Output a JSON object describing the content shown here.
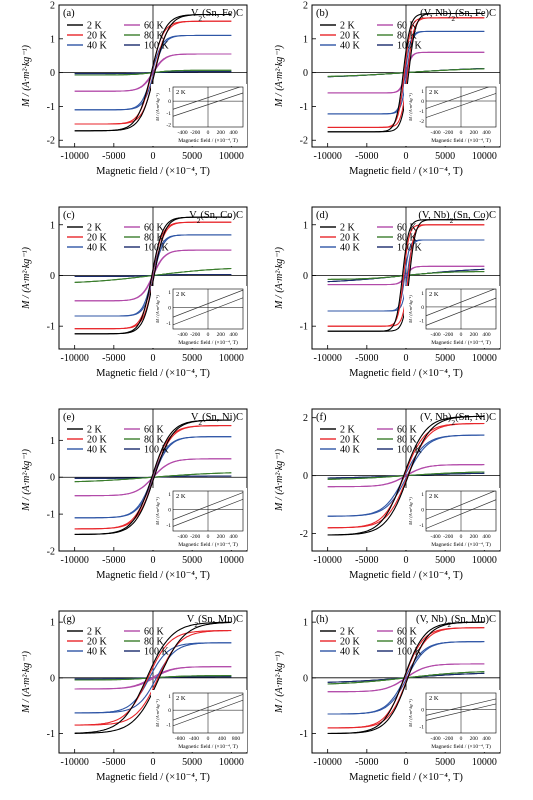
{
  "chart_data": [
    {
      "type": "line",
      "label": "(a)",
      "title": "V2(Sn, Fe)C",
      "title_parts": {
        "pre": "V",
        "sub": "2",
        "post": "(Sn, Fe)C"
      },
      "xlabel": "Magnetic field / (×10⁻⁴, T)",
      "ylabel": "M / (A·m²·kg⁻¹)",
      "xlim": [
        -12000,
        12000
      ],
      "ylim": [
        -2.2,
        2.0
      ],
      "xticks": [
        -10000,
        -5000,
        0,
        5000,
        10000
      ],
      "yticks": [
        -2,
        -1,
        0,
        1,
        2
      ],
      "series": [
        {
          "name": "2 K",
          "color": "#000000",
          "ms": 1.72,
          "hw": 1800,
          "hc": 220
        },
        {
          "name": "20 K",
          "color": "#e8262b",
          "ms": 1.52,
          "hw": 1500,
          "hc": 180
        },
        {
          "name": "40 K",
          "color": "#2f56a6",
          "ms": 1.1,
          "hw": 1300,
          "hc": 120
        },
        {
          "name": "60 K",
          "color": "#b24aa9",
          "ms": 0.55,
          "hw": 1500,
          "hc": 60
        },
        {
          "name": "80 K",
          "color": "#3a7d2c",
          "ms": 0.07,
          "hw": 2500,
          "hc": 0
        },
        {
          "name": "100 K",
          "color": "#1a2a6b",
          "ms": 0.03,
          "hw": 3000,
          "hc": 0
        }
      ],
      "inset": {
        "label": "2 K",
        "ylabel": "M / (A·m²·kg⁻¹)",
        "xlabel": "Magnetic field / (×10⁻⁴, T)",
        "xlim": [
          -550,
          550
        ],
        "ylim": [
          -2.2,
          1.2
        ],
        "xticks": [
          -400,
          -200,
          0,
          200,
          400
        ],
        "yticks": [
          -2,
          -1,
          0,
          1
        ],
        "curves": [
          {
            "slope": 0.0018,
            "offset": 0.3
          },
          {
            "slope": 0.0018,
            "offset": -0.3
          }
        ]
      }
    },
    {
      "type": "line",
      "label": "(b)",
      "title": "(V, Nb)2(Sn, Fe)C",
      "title_parts": {
        "pre": "(V, Nb)",
        "sub": "2",
        "post": "(Sn, Fe)C"
      },
      "xlabel": "Magnetic field / (×10⁻⁴, T)",
      "ylabel": "M / (A·m²·kg⁻¹)",
      "xlim": [
        -12000,
        12000
      ],
      "ylim": [
        -2.2,
        2.0
      ],
      "xticks": [
        -10000,
        -5000,
        0,
        5000,
        10000
      ],
      "yticks": [
        -2,
        -1,
        0,
        1,
        2
      ],
      "series": [
        {
          "name": "2 K",
          "color": "#000000",
          "ms": 1.75,
          "hw": 900,
          "hc": 350
        },
        {
          "name": "20 K",
          "color": "#e8262b",
          "ms": 1.62,
          "hw": 800,
          "hc": 200
        },
        {
          "name": "40 K",
          "color": "#2f56a6",
          "ms": 1.22,
          "hw": 700,
          "hc": 100
        },
        {
          "name": "60 K",
          "color": "#b24aa9",
          "ms": 0.6,
          "hw": 700,
          "hc": 50
        },
        {
          "name": "80 K",
          "color": "#3a7d2c",
          "ms": 0.14,
          "hw": 9000,
          "hc": 0
        },
        {
          "name": "100 K",
          "color": "#1a2a6b",
          "ms": 0.16,
          "hw": 10000,
          "hc": 0
        }
      ],
      "inset": {
        "label": "2 K",
        "ylabel": "M / (A·m²·kg⁻¹)",
        "xlabel": "Magnetic field / (×10⁻⁴, T)",
        "xlim": [
          -550,
          550
        ],
        "ylim": [
          -2.6,
          1.4
        ],
        "xticks": [
          -400,
          -200,
          0,
          200,
          400
        ],
        "yticks": [
          -2,
          -1,
          0,
          1
        ],
        "curves": [
          {
            "slope": 0.0022,
            "offset": 0.45
          },
          {
            "slope": 0.0022,
            "offset": -0.45
          }
        ]
      }
    },
    {
      "type": "line",
      "label": "(c)",
      "title": "V2(Sn, Co)C",
      "title_parts": {
        "pre": "V",
        "sub": "2",
        "post": "(Sn, Co)C"
      },
      "xlabel": "Magnetic field / (×10⁻⁴, T)",
      "ylabel": "M / (A·m²·kg⁻¹)",
      "xlim": [
        -12000,
        12000
      ],
      "ylim": [
        -1.45,
        1.35
      ],
      "xticks": [
        -10000,
        -5000,
        0,
        5000,
        10000
      ],
      "yticks": [
        -1,
        0,
        1
      ],
      "series": [
        {
          "name": "2 K",
          "color": "#000000",
          "ms": 1.15,
          "hw": 1400,
          "hc": 150
        },
        {
          "name": "20 K",
          "color": "#e8262b",
          "ms": 1.05,
          "hw": 1300,
          "hc": 120
        },
        {
          "name": "40 K",
          "color": "#2f56a6",
          "ms": 0.8,
          "hw": 1200,
          "hc": 90
        },
        {
          "name": "60 K",
          "color": "#b24aa9",
          "ms": 0.5,
          "hw": 1500,
          "hc": 40
        },
        {
          "name": "80 K",
          "color": "#3a7d2c",
          "ms": 0.17,
          "hw": 9000,
          "hc": 0
        },
        {
          "name": "100 K",
          "color": "#1a2a6b",
          "ms": 0.02,
          "hw": 3000,
          "hc": 0
        }
      ],
      "inset": {
        "label": "2 K",
        "ylabel": "M / (A·m²·kg⁻¹)",
        "xlabel": "Magnetic field / (×10⁻⁴, T)",
        "xlim": [
          -550,
          550
        ],
        "ylim": [
          -1.4,
          1.2
        ],
        "xticks": [
          -400,
          -200,
          0,
          200,
          400
        ],
        "yticks": [
          -1,
          0,
          1
        ],
        "curves": [
          {
            "slope": 0.0016,
            "offset": 0.25
          },
          {
            "slope": 0.0016,
            "offset": -0.25
          }
        ]
      }
    },
    {
      "type": "line",
      "label": "(d)",
      "title": "(V, Nb)2(Sn, Co)C",
      "title_parts": {
        "pre": "(V, Nb)",
        "sub": "2",
        "post": "(Sn, Co)C"
      },
      "xlabel": "Magnetic field / (×10⁻⁴, T)",
      "ylabel": "M / (A·m²·kg⁻¹)",
      "xlim": [
        -12000,
        12000
      ],
      "ylim": [
        -1.45,
        1.35
      ],
      "xticks": [
        -10000,
        -5000,
        0,
        5000,
        10000
      ],
      "yticks": [
        -1,
        0,
        1
      ],
      "series": [
        {
          "name": "2 K",
          "color": "#000000",
          "ms": 1.1,
          "hw": 800,
          "hc": 450
        },
        {
          "name": "20 K",
          "color": "#e8262b",
          "ms": 1.0,
          "hw": 700,
          "hc": 300
        },
        {
          "name": "40 K",
          "color": "#2f56a6",
          "ms": 0.7,
          "hw": 600,
          "hc": 150
        },
        {
          "name": "60 K",
          "color": "#b24aa9",
          "ms": 0.18,
          "hw": 800,
          "hc": 50
        },
        {
          "name": "80 K",
          "color": "#3a7d2c",
          "ms": 0.08,
          "hw": 5000,
          "hc": 0
        },
        {
          "name": "100 K",
          "color": "#1a2a6b",
          "ms": 0.16,
          "hw": 10000,
          "hc": 0
        }
      ],
      "inset": {
        "label": "2 K",
        "ylabel": "M / (A·m²·kg⁻¹)",
        "xlabel": "Magnetic field / (×10⁻⁴, T)",
        "xlim": [
          -550,
          550
        ],
        "ylim": [
          -1.6,
          1.3
        ],
        "xticks": [
          -400,
          -200,
          0,
          200,
          400
        ],
        "yticks": [
          -1,
          0,
          1
        ],
        "curves": [
          {
            "slope": 0.0018,
            "offset": 0.35
          },
          {
            "slope": 0.0018,
            "offset": -0.35
          }
        ]
      }
    },
    {
      "type": "line",
      "label": "(e)",
      "title": "V2(Sn, Ni)C",
      "title_parts": {
        "pre": "V",
        "sub": "2",
        "post": "(Sn, Ni)C"
      },
      "xlabel": "Magnetic field / (×10⁻⁴, T)",
      "ylabel": "M / (A·m²·kg⁻¹)",
      "xlim": [
        -12000,
        12000
      ],
      "ylim": [
        -2.0,
        1.85
      ],
      "xticks": [
        -10000,
        -5000,
        0,
        5000,
        10000
      ],
      "yticks": [
        -2,
        -1,
        0,
        1
      ],
      "series": [
        {
          "name": "2 K",
          "color": "#000000",
          "ms": 1.55,
          "hw": 2400,
          "hc": 150
        },
        {
          "name": "20 K",
          "color": "#e8262b",
          "ms": 1.4,
          "hw": 2200,
          "hc": 120
        },
        {
          "name": "40 K",
          "color": "#2f56a6",
          "ms": 1.1,
          "hw": 2000,
          "hc": 80
        },
        {
          "name": "60 K",
          "color": "#b24aa9",
          "ms": 0.5,
          "hw": 2200,
          "hc": 30
        },
        {
          "name": "80 K",
          "color": "#3a7d2c",
          "ms": 0.15,
          "hw": 9000,
          "hc": 0
        },
        {
          "name": "100 K",
          "color": "#1a2a6b",
          "ms": 0.03,
          "hw": 3000,
          "hc": 0
        }
      ],
      "inset": {
        "label": "2 K",
        "ylabel": "M / (A·m²·kg⁻¹)",
        "xlabel": "Magnetic field / (×10⁻⁴, T)",
        "xlim": [
          -550,
          550
        ],
        "ylim": [
          -1.4,
          1.2
        ],
        "xticks": [
          -400,
          -200,
          0,
          200,
          400
        ],
        "yticks": [
          -1,
          0,
          1
        ],
        "curves": [
          {
            "slope": 0.0016,
            "offset": 0.22
          },
          {
            "slope": 0.0016,
            "offset": -0.22
          }
        ]
      }
    },
    {
      "type": "line",
      "label": "(f)",
      "title": "(V, Nb)2(Sn, Ni)C",
      "title_parts": {
        "pre": "(V, Nb)",
        "sub": "2",
        "post": "(Sn, Ni)C"
      },
      "xlabel": "Magnetic field / (×10⁻⁴, T)",
      "ylabel": "M / (A·m²·kg⁻¹)",
      "xlim": [
        -12000,
        12000
      ],
      "ylim": [
        -2.6,
        2.3
      ],
      "xticks": [
        -10000,
        -5000,
        0,
        5000,
        10000
      ],
      "yticks": [
        -2,
        0,
        2
      ],
      "series": [
        {
          "name": "2 K",
          "color": "#000000",
          "ms": 2.05,
          "hw": 2800,
          "hc": 300
        },
        {
          "name": "20 K",
          "color": "#e8262b",
          "ms": 1.8,
          "hw": 2600,
          "hc": 220
        },
        {
          "name": "40 K",
          "color": "#2f56a6",
          "ms": 1.4,
          "hw": 2600,
          "hc": 150
        },
        {
          "name": "60 K",
          "color": "#b24aa9",
          "ms": 0.38,
          "hw": 2500,
          "hc": 50
        },
        {
          "name": "80 K",
          "color": "#3a7d2c",
          "ms": 0.15,
          "hw": 8000,
          "hc": 0
        },
        {
          "name": "100 K",
          "color": "#1a2a6b",
          "ms": 0.1,
          "hw": 9000,
          "hc": 0
        }
      ],
      "inset": {
        "label": "2 K",
        "ylabel": "M / (A·m²·kg⁻¹)",
        "xlabel": "Magnetic field / (×10⁻⁴, T)",
        "xlim": [
          -550,
          550
        ],
        "ylim": [
          -1.4,
          1.2
        ],
        "xticks": [
          -400,
          -200,
          0,
          200,
          400
        ],
        "yticks": [
          -1,
          0,
          1
        ],
        "curves": [
          {
            "slope": 0.0017,
            "offset": 0.3
          },
          {
            "slope": 0.0017,
            "offset": -0.3
          }
        ]
      }
    },
    {
      "type": "line",
      "label": "(g)",
      "title": "V2(Sn, Mn)C",
      "title_parts": {
        "pre": "V",
        "sub": "2",
        "post": "(Sn, Mn)C"
      },
      "xlabel": "Magnetic field / (×10⁻⁴, T)",
      "ylabel": "M / (A·m²·kg⁻¹)",
      "xlim": [
        -12000,
        12000
      ],
      "ylim": [
        -1.35,
        1.2
      ],
      "xticks": [
        -10000,
        -5000,
        0,
        5000,
        10000
      ],
      "yticks": [
        -1,
        0,
        1
      ],
      "series": [
        {
          "name": "2 K",
          "color": "#000000",
          "ms": 1.0,
          "hw": 3200,
          "hc": 800
        },
        {
          "name": "20 K",
          "color": "#e8262b",
          "ms": 0.85,
          "hw": 2800,
          "hc": 650
        },
        {
          "name": "40 K",
          "color": "#2f56a6",
          "ms": 0.63,
          "hw": 2400,
          "hc": 450
        },
        {
          "name": "60 K",
          "color": "#b24aa9",
          "ms": 0.2,
          "hw": 2500,
          "hc": 150
        },
        {
          "name": "80 K",
          "color": "#3a7d2c",
          "ms": 0.04,
          "hw": 4000,
          "hc": 0
        },
        {
          "name": "100 K",
          "color": "#1a2a6b",
          "ms": 0.02,
          "hw": 4000,
          "hc": 0
        }
      ],
      "inset": {
        "label": "2 K",
        "ylabel": "M / (A·m²·kg⁻¹)",
        "xlabel": "Magnetic field / (×10⁻⁴, T)",
        "xlim": [
          -1000,
          1000
        ],
        "ylim": [
          -1.6,
          1.2
        ],
        "xticks": [
          -800,
          -400,
          0,
          400,
          800
        ],
        "yticks": [
          -1,
          0,
          1
        ],
        "curves": [
          {
            "slope": 0.0009,
            "offset": 0.2
          },
          {
            "slope": 0.0009,
            "offset": -0.2
          }
        ]
      }
    },
    {
      "type": "line",
      "label": "(h)",
      "title": "(V, Nb)2(Sn, Mn)C",
      "title_parts": {
        "pre": "(V, Nb)",
        "sub": "2",
        "post": "(Sn, Mn)C"
      },
      "xlabel": "Magnetic field / (×10⁻⁴, T)",
      "ylabel": "M / (A·m²·kg⁻¹)",
      "xlim": [
        -12000,
        12000
      ],
      "ylim": [
        -1.35,
        1.2
      ],
      "xticks": [
        -10000,
        -5000,
        0,
        5000,
        10000
      ],
      "yticks": [
        -1,
        0,
        1
      ],
      "series": [
        {
          "name": "2 K",
          "color": "#000000",
          "ms": 1.0,
          "hw": 2600,
          "hc": 250
        },
        {
          "name": "20 K",
          "color": "#e8262b",
          "ms": 0.9,
          "hw": 2400,
          "hc": 200
        },
        {
          "name": "40 K",
          "color": "#2f56a6",
          "ms": 0.65,
          "hw": 2400,
          "hc": 120
        },
        {
          "name": "60 K",
          "color": "#b24aa9",
          "ms": 0.25,
          "hw": 2600,
          "hc": 40
        },
        {
          "name": "80 K",
          "color": "#3a7d2c",
          "ms": 0.13,
          "hw": 8000,
          "hc": 0
        },
        {
          "name": "100 K",
          "color": "#1a2a6b",
          "ms": 0.1,
          "hw": 9000,
          "hc": 0
        }
      ],
      "inset": {
        "label": "2 K",
        "ylabel": "M / (A·m²·kg⁻¹)",
        "xlabel": "Magnetic field / (×10⁻⁴, T)",
        "xlim": [
          -550,
          550
        ],
        "ylim": [
          -1.4,
          1.0
        ],
        "xticks": [
          -400,
          -200,
          0,
          200,
          400
        ],
        "yticks": [
          -1,
          0
        ],
        "curves": [
          {
            "slope": 0.0009,
            "offset": 0.15
          },
          {
            "slope": 0.0009,
            "offset": -0.15
          }
        ]
      }
    }
  ]
}
